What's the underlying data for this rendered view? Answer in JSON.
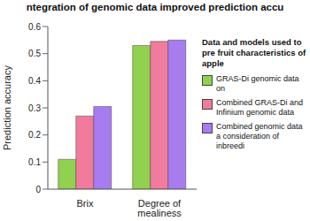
{
  "chart_data": {
    "type": "bar",
    "title": "ntegration of genomic data improved prediction accu",
    "y_label": "Prediction accuracy",
    "legend_title": "Data and models used to pre fruit characteristics of apple",
    "categories": [
      "Brix",
      "Degree of mealiness"
    ],
    "series": [
      {
        "name": "GRAS-Di genomic data on",
        "color": "#92d050",
        "values": [
          0.11,
          0.53
        ]
      },
      {
        "name": "Combined GRAS-Di and Infinium genomic data",
        "color": "#f07b9c",
        "values": [
          0.27,
          0.545
        ]
      },
      {
        "name": "Combined genomic data a consideration of inbreedi",
        "color": "#a77cf0",
        "values": [
          0.305,
          0.55
        ]
      }
    ],
    "ylim": [
      0,
      0.6
    ],
    "yticks": [
      0,
      0.1,
      0.2,
      0.3,
      0.4,
      0.5,
      0.6
    ],
    "grid": false,
    "legend": "right"
  }
}
